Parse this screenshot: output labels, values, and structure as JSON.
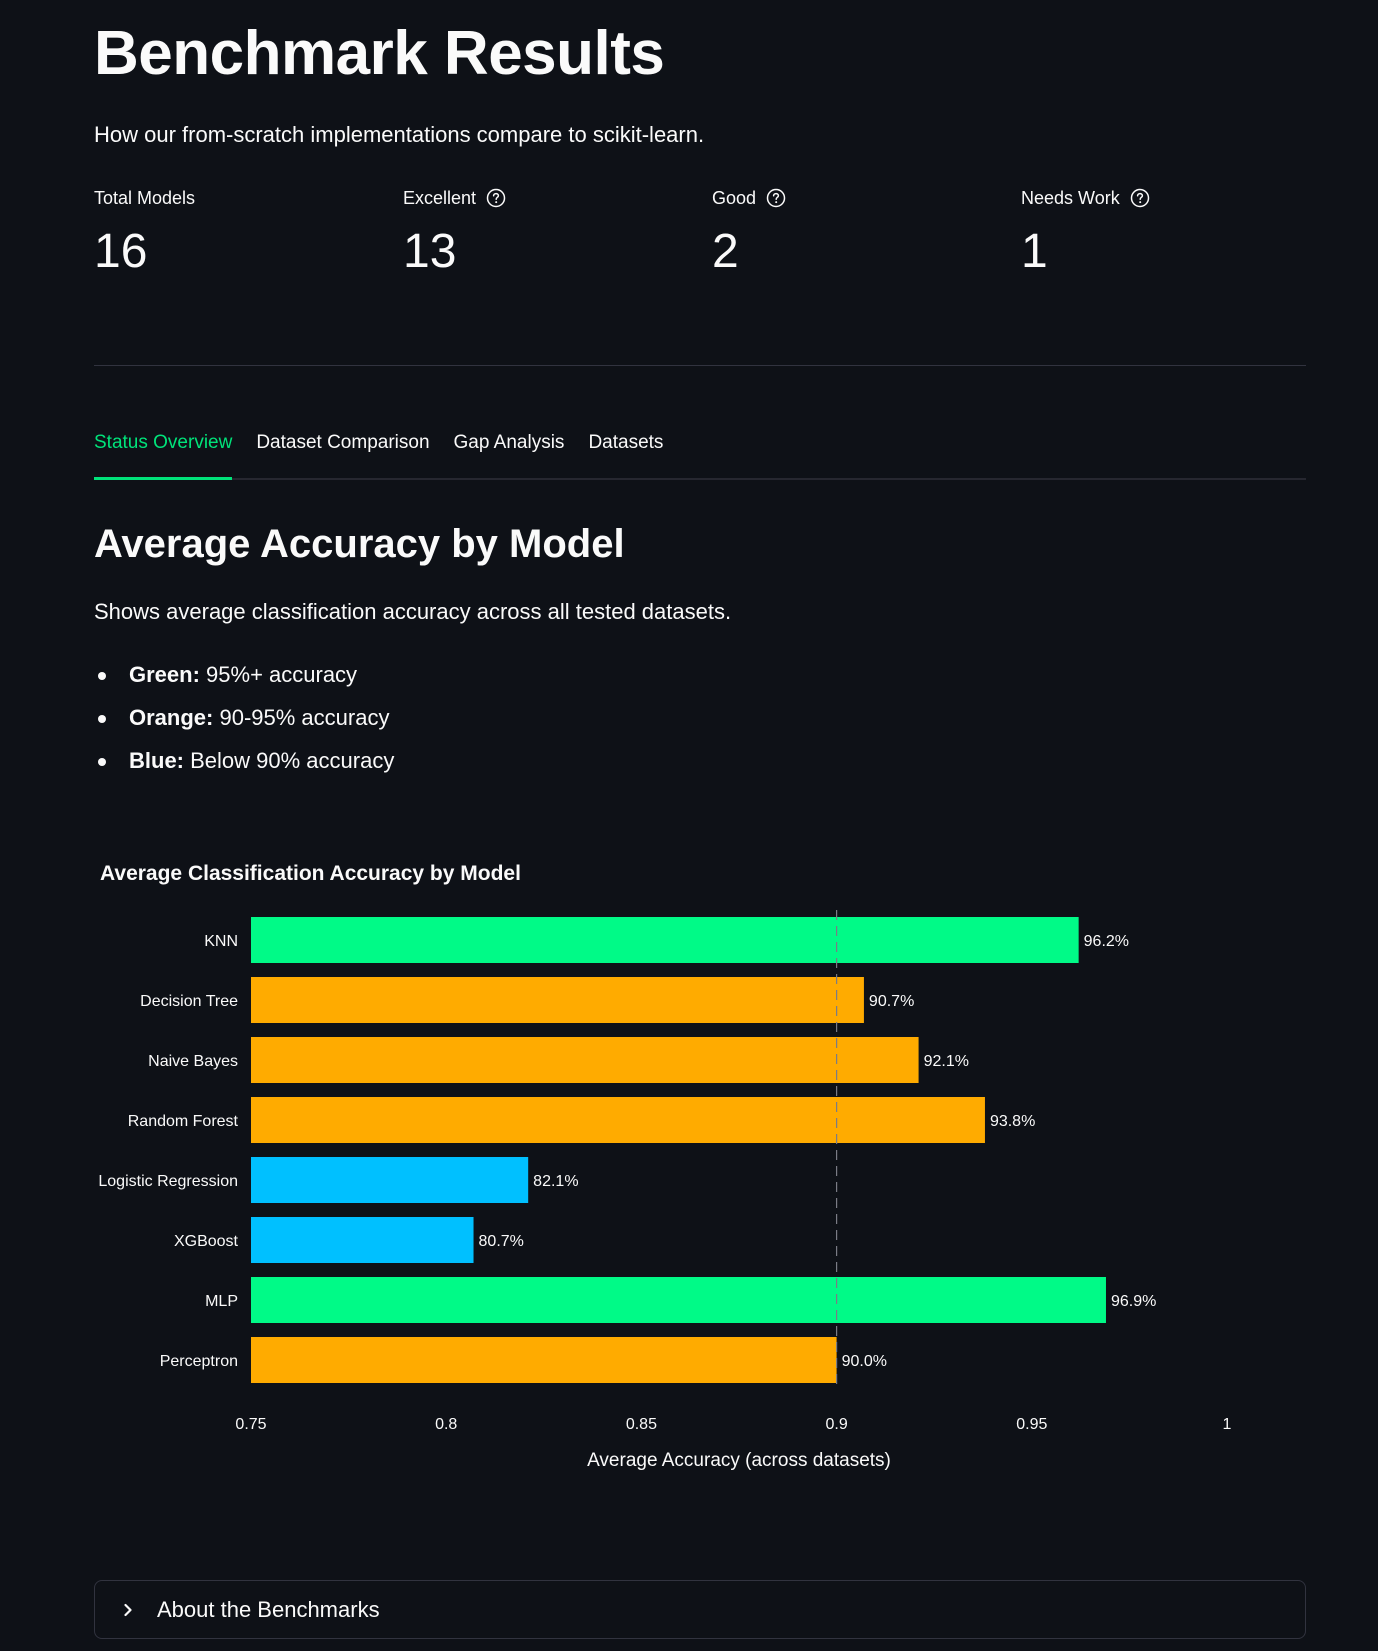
{
  "header": {
    "title": "Benchmark Results",
    "subtitle": "How our from-scratch implementations compare to scikit-learn."
  },
  "metrics": [
    {
      "label": "Total Models",
      "value": "16",
      "help": false
    },
    {
      "label": "Excellent",
      "value": "13",
      "help": true
    },
    {
      "label": "Good",
      "value": "2",
      "help": true
    },
    {
      "label": "Needs Work",
      "value": "1",
      "help": true
    }
  ],
  "tabs": [
    {
      "label": "Status Overview",
      "active": true
    },
    {
      "label": "Dataset Comparison",
      "active": false
    },
    {
      "label": "Gap Analysis",
      "active": false
    },
    {
      "label": "Datasets",
      "active": false
    }
  ],
  "section": {
    "title": "Average Accuracy by Model",
    "description": "Shows average classification accuracy across all tested datasets.",
    "legend": [
      {
        "term": "Green:",
        "text": " 95%+ accuracy"
      },
      {
        "term": "Orange:",
        "text": " 90-95% accuracy"
      },
      {
        "term": "Blue:",
        "text": " Below 90% accuracy"
      }
    ]
  },
  "colors": {
    "green": "#00fa87",
    "orange": "#ffab00",
    "blue": "#00c0ff",
    "accent": "#00e37a",
    "background": "#0e1117"
  },
  "chart_data": {
    "type": "bar",
    "orientation": "horizontal",
    "title": "Average Classification Accuracy by Model",
    "xlabel": "Average Accuracy (across datasets)",
    "ylabel": "",
    "xlim": [
      0.75,
      1.0
    ],
    "xticks": [
      "0.75",
      "0.8",
      "0.85",
      "0.9",
      "0.95",
      "1"
    ],
    "tick_values": [
      0.75,
      0.8,
      0.85,
      0.9,
      0.95,
      1.0
    ],
    "reference_line": 0.9,
    "categories": [
      "KNN",
      "Decision Tree",
      "Naive Bayes",
      "Random Forest",
      "Logistic Regression",
      "XGBoost",
      "MLP",
      "Perceptron"
    ],
    "values": [
      0.962,
      0.907,
      0.921,
      0.938,
      0.821,
      0.807,
      0.969,
      0.9
    ],
    "labels": [
      "96.2%",
      "90.7%",
      "92.1%",
      "93.8%",
      "82.1%",
      "80.7%",
      "96.9%",
      "90.0%"
    ],
    "bar_colors": [
      "green",
      "orange",
      "orange",
      "orange",
      "blue",
      "blue",
      "green",
      "orange"
    ]
  },
  "expander": {
    "label": "About the Benchmarks"
  }
}
